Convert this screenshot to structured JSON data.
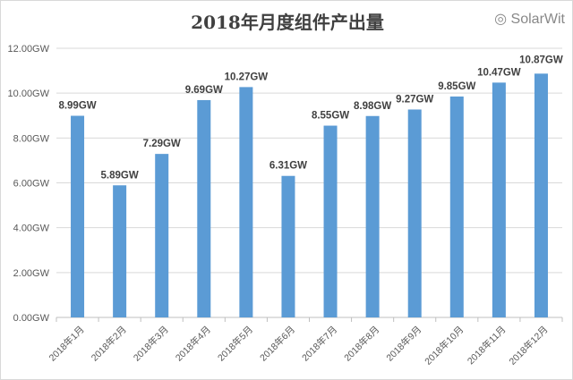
{
  "chart_data": {
    "type": "bar",
    "title": "2018年月度组件产出量",
    "categories": [
      "2018年1月",
      "2018年2月",
      "2018年3月",
      "2018年4月",
      "2018年5月",
      "2018年6月",
      "2018年7月",
      "2018年8月",
      "2018年9月",
      "2018年10月",
      "2018年11月",
      "2018年12月"
    ],
    "values": [
      8.99,
      5.89,
      7.29,
      9.69,
      10.27,
      6.31,
      8.55,
      8.98,
      9.27,
      9.85,
      10.47,
      10.87
    ],
    "data_labels": [
      "8.99GW",
      "5.89GW",
      "7.29GW",
      "9.69GW",
      "10.27GW",
      "6.31GW",
      "8.55GW",
      "8.98GW",
      "9.27GW",
      "9.85GW",
      "10.47GW",
      "10.87GW"
    ],
    "yticks": [
      "0.00GW",
      "2.00GW",
      "4.00GW",
      "6.00GW",
      "8.00GW",
      "10.00GW",
      "12.00GW"
    ],
    "ylim": [
      0,
      12
    ],
    "xlabel": "",
    "ylabel": "",
    "grid": true,
    "bar_color": "#5b9bd5"
  },
  "watermark": "SolarWit"
}
